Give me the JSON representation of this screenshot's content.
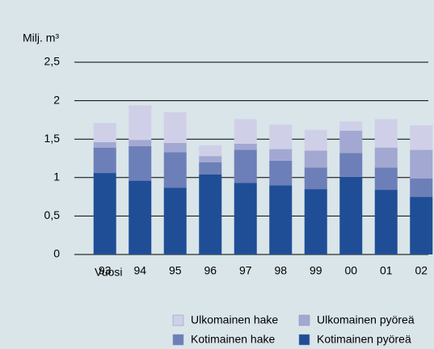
{
  "chart_data": {
    "type": "bar",
    "stacked": true,
    "y_label": "Milj. m³",
    "x_label": "Vuosi",
    "categories": [
      "93",
      "94",
      "95",
      "96",
      "97",
      "98",
      "99",
      "00",
      "01",
      "02"
    ],
    "series": [
      {
        "name": "Kotimainen pyöreä",
        "color": "#1f4e96",
        "values": [
          1.06,
          0.96,
          0.87,
          1.04,
          0.93,
          0.9,
          0.85,
          1.01,
          0.84,
          0.75
        ]
      },
      {
        "name": "Kotimainen hake",
        "color": "#6d7fb8",
        "values": [
          0.33,
          0.45,
          0.46,
          0.16,
          0.43,
          0.32,
          0.28,
          0.31,
          0.29,
          0.24
        ]
      },
      {
        "name": "Ulkomainen pyöreä",
        "color": "#a3a8d2",
        "values": [
          0.07,
          0.08,
          0.12,
          0.08,
          0.08,
          0.15,
          0.22,
          0.29,
          0.26,
          0.37
        ]
      },
      {
        "name": "Ulkomainen hake",
        "color": "#cfd0e8",
        "values": [
          0.25,
          0.45,
          0.4,
          0.14,
          0.32,
          0.32,
          0.27,
          0.12,
          0.37,
          0.32
        ]
      }
    ],
    "ylim": [
      0,
      2.5
    ],
    "yticks": [
      0,
      {
        "value": 0.5,
        "label": "0,5"
      },
      1,
      {
        "value": 1.5,
        "label": "1,5"
      },
      2,
      {
        "value": 2.5,
        "label": "2,5"
      }
    ],
    "grid": true
  }
}
